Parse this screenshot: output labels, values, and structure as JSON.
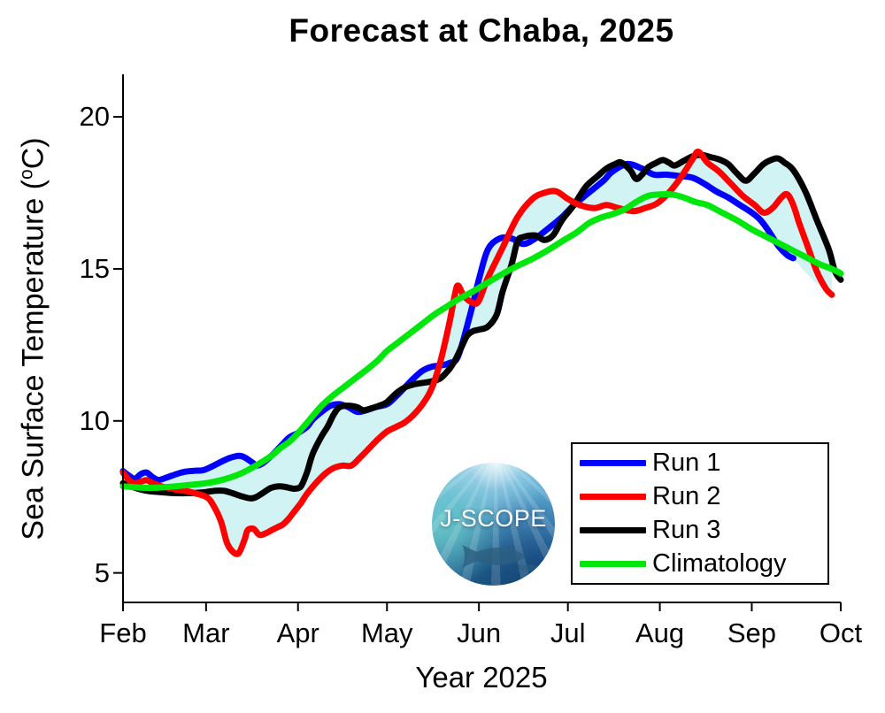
{
  "title": "Forecast at Chaba, 2025",
  "chart_data": {
    "type": "line",
    "title": "Forecast at Chaba, 2025",
    "xlabel": "Year 2025",
    "ylabel": "Sea Surface Temperature (°C)",
    "ylabel_parts": {
      "base": "Sea Surface Temperature (",
      "sup": "o",
      "end": "C)"
    },
    "x_axis": {
      "unit": "days since Feb 1",
      "tick_labels": [
        "Feb",
        "Mar",
        "Apr",
        "May",
        "Jun",
        "Jul",
        "Aug",
        "Sep",
        "Oct"
      ],
      "tick_days": [
        0,
        28,
        59,
        89,
        120,
        150,
        181,
        212,
        242
      ],
      "xlim": [
        0,
        242
      ]
    },
    "y_axis": {
      "ticks": [
        5,
        10,
        15,
        20
      ],
      "ylim": [
        4.0,
        21.4
      ]
    },
    "grid": false,
    "envelope": {
      "description": "shaded min-max range across Run 1, Run 2, Run 3",
      "fill_color": "#D2F3F4",
      "run1_tail_extension_x": [
        229,
        233,
        237,
        239
      ],
      "run1_tail_extension_y": [
        15.0,
        14.6,
        14.3,
        14.15
      ]
    },
    "series": [
      {
        "name": "Run 1",
        "color": "#0000FF",
        "in_envelope": true,
        "x": [
          0,
          2,
          4,
          6,
          8,
          10,
          12,
          15,
          18,
          21,
          24,
          27,
          30,
          33,
          36,
          39,
          41,
          44,
          45,
          47,
          50,
          53,
          56,
          59,
          62,
          64,
          67,
          70,
          73,
          76,
          79,
          82,
          85,
          89,
          92,
          95,
          98,
          101,
          104,
          107,
          110,
          113,
          117,
          120,
          123,
          127,
          131,
          135,
          139,
          143,
          148,
          152,
          157,
          162,
          165,
          170,
          175,
          179,
          183,
          188,
          192,
          196,
          200,
          204,
          208,
          212,
          215,
          218,
          221,
          224,
          226
        ],
        "y": [
          8.35,
          8.2,
          8.1,
          8.25,
          8.3,
          8.15,
          8.06,
          8.15,
          8.25,
          8.33,
          8.36,
          8.38,
          8.5,
          8.65,
          8.78,
          8.85,
          8.8,
          8.6,
          8.53,
          8.6,
          8.85,
          9.15,
          9.45,
          9.6,
          9.8,
          10.05,
          10.3,
          10.5,
          10.55,
          10.45,
          10.3,
          10.35,
          10.45,
          10.55,
          10.8,
          11.1,
          11.4,
          11.65,
          11.78,
          11.82,
          11.9,
          12.13,
          13.48,
          14.65,
          15.63,
          16.0,
          16.0,
          15.82,
          16.0,
          16.3,
          16.7,
          17.1,
          17.5,
          17.9,
          18.2,
          18.45,
          18.3,
          18.1,
          18.1,
          18.05,
          18.0,
          17.8,
          17.55,
          17.35,
          17.1,
          16.85,
          16.6,
          16.2,
          15.75,
          15.45,
          15.35
        ]
      },
      {
        "name": "Run 2",
        "color": "#FF0000",
        "in_envelope": true,
        "x": [
          0,
          2,
          4,
          6,
          8,
          10,
          13,
          16,
          19,
          22,
          25,
          28,
          30,
          33,
          35,
          37,
          39,
          41,
          42,
          44,
          46,
          48,
          50,
          52,
          54,
          56,
          58,
          60,
          62,
          65,
          68,
          71,
          74,
          77,
          80,
          83,
          86,
          89,
          92,
          95,
          98,
          101,
          104,
          107,
          110,
          112,
          113,
          115,
          118,
          120,
          123,
          128,
          133,
          138,
          142,
          146,
          150,
          154,
          159,
          163,
          167,
          172,
          176,
          180,
          184,
          188,
          192,
          194,
          197,
          201,
          205,
          209,
          213,
          216,
          219,
          222,
          224,
          226,
          228,
          231,
          234,
          237,
          239
        ],
        "y": [
          8.3,
          8.05,
          7.95,
          8.0,
          8.05,
          7.95,
          7.85,
          7.78,
          7.72,
          7.68,
          7.6,
          7.5,
          7.3,
          6.7,
          6.0,
          5.7,
          5.65,
          6.1,
          6.4,
          6.45,
          6.25,
          6.3,
          6.4,
          6.5,
          6.6,
          6.8,
          7.05,
          7.3,
          7.6,
          7.95,
          8.25,
          8.45,
          8.53,
          8.53,
          8.8,
          9.1,
          9.4,
          9.65,
          9.8,
          9.95,
          10.2,
          10.55,
          11.05,
          11.95,
          13.2,
          14.2,
          14.45,
          14.1,
          13.88,
          13.95,
          14.7,
          15.7,
          16.7,
          17.3,
          17.5,
          17.55,
          17.3,
          17.1,
          17.0,
          17.1,
          17.0,
          16.9,
          17.0,
          17.15,
          17.5,
          18.0,
          18.6,
          18.85,
          18.5,
          18.2,
          17.8,
          17.4,
          17.1,
          16.85,
          17.0,
          17.35,
          17.45,
          17.1,
          16.5,
          15.7,
          14.9,
          14.35,
          14.15
        ]
      },
      {
        "name": "Run 3",
        "color": "#000000",
        "in_envelope": true,
        "x": [
          0,
          4,
          8,
          12,
          16,
          20,
          24,
          28,
          31,
          34,
          37,
          40,
          43,
          45,
          47,
          50,
          53,
          56,
          58,
          60,
          62,
          64,
          67,
          69,
          71,
          73,
          76,
          79,
          81,
          84,
          87,
          89,
          92,
          95,
          98,
          101,
          104,
          107,
          110,
          112,
          114,
          116,
          118,
          120,
          123,
          126,
          128,
          131,
          133,
          135,
          139,
          142,
          145,
          148,
          152,
          156,
          160,
          163,
          166,
          168,
          171,
          173,
          175,
          177,
          180,
          182,
          184,
          186,
          189,
          192,
          195,
          198,
          201,
          204,
          207,
          210,
          213,
          216,
          219,
          221,
          223,
          226,
          230,
          234,
          238,
          240,
          242
        ],
        "y": [
          7.95,
          7.8,
          7.7,
          7.66,
          7.63,
          7.62,
          7.63,
          7.66,
          7.7,
          7.7,
          7.62,
          7.52,
          7.45,
          7.5,
          7.62,
          7.8,
          7.85,
          7.8,
          7.77,
          7.85,
          8.3,
          8.93,
          9.5,
          9.81,
          10.2,
          10.45,
          10.5,
          10.45,
          10.35,
          10.42,
          10.52,
          10.62,
          10.9,
          11.1,
          11.2,
          11.25,
          11.3,
          11.4,
          11.7,
          12.0,
          12.4,
          12.8,
          12.95,
          13.0,
          13.1,
          13.5,
          14.26,
          15.14,
          15.9,
          16.05,
          16.1,
          15.95,
          16.1,
          16.6,
          17.1,
          17.7,
          18.05,
          18.3,
          18.45,
          18.5,
          18.25,
          17.96,
          18.1,
          18.34,
          18.5,
          18.58,
          18.5,
          18.4,
          18.55,
          18.7,
          18.75,
          18.68,
          18.6,
          18.45,
          18.14,
          17.9,
          18.15,
          18.45,
          18.6,
          18.63,
          18.5,
          18.25,
          17.56,
          16.59,
          15.63,
          14.93,
          14.64
        ]
      },
      {
        "name": "Climatology",
        "color": "#00E70C",
        "in_envelope": false,
        "x": [
          0,
          7,
          14,
          21,
          28,
          33,
          38,
          42,
          46,
          50,
          53,
          56,
          59,
          63,
          67,
          71,
          75,
          79,
          83,
          86,
          89,
          93,
          97,
          101,
          105,
          109,
          113,
          118,
          123,
          128,
          133,
          138,
          143,
          148,
          153,
          157,
          161,
          165,
          169,
          173,
          177,
          181,
          185,
          189,
          193,
          197,
          202,
          207,
          212,
          217,
          222,
          227,
          231,
          235,
          239,
          242
        ],
        "y": [
          7.85,
          7.8,
          7.82,
          7.88,
          7.95,
          8.05,
          8.2,
          8.38,
          8.6,
          8.85,
          9.1,
          9.31,
          9.6,
          10.05,
          10.5,
          10.85,
          11.15,
          11.45,
          11.75,
          12.0,
          12.3,
          12.6,
          12.9,
          13.2,
          13.5,
          13.75,
          14.0,
          14.26,
          14.55,
          14.84,
          15.1,
          15.33,
          15.6,
          15.91,
          16.2,
          16.5,
          16.68,
          16.8,
          16.95,
          17.2,
          17.4,
          17.45,
          17.45,
          17.35,
          17.2,
          17.1,
          16.85,
          16.6,
          16.3,
          16.05,
          15.8,
          15.55,
          15.35,
          15.15,
          15.0,
          14.85
        ]
      }
    ],
    "legend": {
      "position": "inside lower right",
      "entries": [
        {
          "label": "Run 1",
          "color": "#0000FF"
        },
        {
          "label": "Run 2",
          "color": "#FF0000"
        },
        {
          "label": "Run 3",
          "color": "#000000"
        },
        {
          "label": "Climatology",
          "color": "#00E70C"
        }
      ]
    },
    "axis_color": "#000000",
    "line_width": 7
  },
  "logo": {
    "text": "J-SCOPE"
  }
}
